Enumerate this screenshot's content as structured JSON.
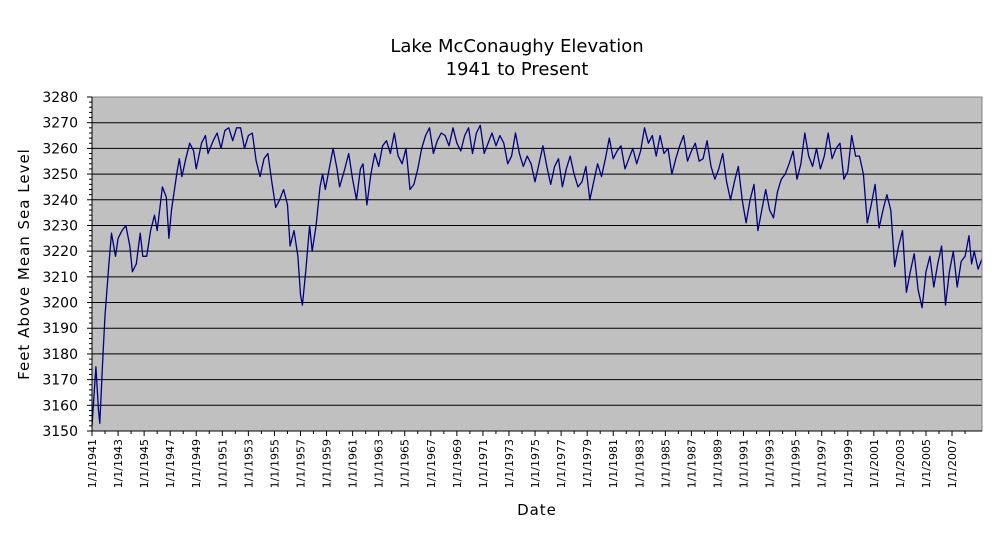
{
  "chart_data": {
    "type": "line",
    "title": "Lake McConaughy Elevation",
    "subtitle": "1941 to Present",
    "xlabel": "Date",
    "ylabel": "Feet Above Mean Sea Level",
    "ylim": [
      3150,
      3280
    ],
    "yticks": [
      3150,
      3160,
      3170,
      3180,
      3190,
      3200,
      3210,
      3220,
      3230,
      3240,
      3250,
      3260,
      3270,
      3280
    ],
    "xlim": [
      1941.0,
      2009.3
    ],
    "xticks": [
      "1/1/1941",
      "1/1/1943",
      "1/1/1945",
      "1/1/1947",
      "1/1/1949",
      "1/1/1951",
      "1/1/1953",
      "1/1/1955",
      "1/1/1957",
      "1/1/1959",
      "1/1/1961",
      "1/1/1963",
      "1/1/1965",
      "1/1/1967",
      "1/1/1969",
      "1/1/1971",
      "1/1/1973",
      "1/1/1975",
      "1/1/1977",
      "1/1/1979",
      "1/1/1981",
      "1/1/1983",
      "1/1/1985",
      "1/1/1987",
      "1/1/1989",
      "1/1/1991",
      "1/1/1993",
      "1/1/1995",
      "1/1/1997",
      "1/1/1999",
      "1/1/2001",
      "1/1/2003",
      "1/1/2005",
      "1/1/2007"
    ],
    "grid": true,
    "colors": {
      "line": "#000080",
      "plot_background": "#c0c0c0",
      "gridline": "#000000"
    },
    "series": [
      {
        "values": [
          [
            1941.0,
            3152
          ],
          [
            1941.3,
            3175
          ],
          [
            1941.5,
            3158
          ],
          [
            1941.6,
            3153
          ],
          [
            1941.8,
            3175
          ],
          [
            1942.0,
            3195
          ],
          [
            1942.3,
            3215
          ],
          [
            1942.5,
            3227
          ],
          [
            1942.8,
            3218
          ],
          [
            1943.0,
            3225
          ],
          [
            1943.3,
            3228
          ],
          [
            1943.6,
            3230
          ],
          [
            1943.9,
            3222
          ],
          [
            1944.1,
            3212
          ],
          [
            1944.4,
            3215
          ],
          [
            1944.7,
            3227
          ],
          [
            1944.9,
            3218
          ],
          [
            1945.2,
            3218
          ],
          [
            1945.5,
            3228
          ],
          [
            1945.8,
            3234
          ],
          [
            1946.0,
            3228
          ],
          [
            1946.4,
            3245
          ],
          [
            1946.7,
            3241
          ],
          [
            1946.9,
            3225
          ],
          [
            1947.1,
            3236
          ],
          [
            1947.5,
            3250
          ],
          [
            1947.7,
            3256
          ],
          [
            1947.9,
            3249
          ],
          [
            1948.2,
            3256
          ],
          [
            1948.5,
            3262
          ],
          [
            1948.8,
            3259
          ],
          [
            1949.0,
            3252
          ],
          [
            1949.4,
            3262
          ],
          [
            1949.7,
            3265
          ],
          [
            1949.9,
            3258
          ],
          [
            1950.3,
            3263
          ],
          [
            1950.6,
            3266
          ],
          [
            1950.9,
            3260
          ],
          [
            1951.2,
            3267
          ],
          [
            1951.5,
            3268
          ],
          [
            1951.8,
            3263
          ],
          [
            1952.1,
            3268
          ],
          [
            1952.4,
            3268
          ],
          [
            1952.7,
            3260
          ],
          [
            1953.0,
            3265
          ],
          [
            1953.3,
            3266
          ],
          [
            1953.6,
            3255
          ],
          [
            1953.9,
            3249
          ],
          [
            1954.2,
            3256
          ],
          [
            1954.5,
            3258
          ],
          [
            1954.8,
            3247
          ],
          [
            1955.1,
            3237
          ],
          [
            1955.4,
            3240
          ],
          [
            1955.7,
            3244
          ],
          [
            1956.0,
            3238
          ],
          [
            1956.2,
            3222
          ],
          [
            1956.5,
            3228
          ],
          [
            1956.8,
            3218
          ],
          [
            1957.0,
            3203
          ],
          [
            1957.15,
            3199
          ],
          [
            1957.4,
            3212
          ],
          [
            1957.7,
            3230
          ],
          [
            1957.9,
            3220
          ],
          [
            1958.2,
            3230
          ],
          [
            1958.5,
            3245
          ],
          [
            1958.7,
            3250
          ],
          [
            1958.9,
            3244
          ],
          [
            1959.2,
            3252
          ],
          [
            1959.5,
            3260
          ],
          [
            1959.8,
            3252
          ],
          [
            1960.0,
            3245
          ],
          [
            1960.4,
            3252
          ],
          [
            1960.7,
            3258
          ],
          [
            1961.0,
            3248
          ],
          [
            1961.3,
            3240
          ],
          [
            1961.6,
            3252
          ],
          [
            1961.8,
            3254
          ],
          [
            1962.1,
            3238
          ],
          [
            1962.4,
            3250
          ],
          [
            1962.7,
            3258
          ],
          [
            1963.0,
            3253
          ],
          [
            1963.3,
            3261
          ],
          [
            1963.6,
            3263
          ],
          [
            1963.9,
            3258
          ],
          [
            1964.2,
            3266
          ],
          [
            1964.5,
            3257
          ],
          [
            1964.8,
            3254
          ],
          [
            1965.1,
            3260
          ],
          [
            1965.4,
            3244
          ],
          [
            1965.7,
            3246
          ],
          [
            1966.0,
            3252
          ],
          [
            1966.3,
            3260
          ],
          [
            1966.6,
            3265
          ],
          [
            1966.9,
            3268
          ],
          [
            1967.2,
            3258
          ],
          [
            1967.5,
            3263
          ],
          [
            1967.8,
            3266
          ],
          [
            1968.1,
            3265
          ],
          [
            1968.4,
            3261
          ],
          [
            1968.7,
            3268
          ],
          [
            1969.0,
            3262
          ],
          [
            1969.3,
            3259
          ],
          [
            1969.6,
            3265
          ],
          [
            1969.9,
            3268
          ],
          [
            1970.2,
            3258
          ],
          [
            1970.5,
            3266
          ],
          [
            1970.8,
            3269
          ],
          [
            1971.1,
            3258
          ],
          [
            1971.4,
            3262
          ],
          [
            1971.7,
            3266
          ],
          [
            1972.0,
            3261
          ],
          [
            1972.3,
            3265
          ],
          [
            1972.6,
            3262
          ],
          [
            1972.9,
            3254
          ],
          [
            1973.2,
            3257
          ],
          [
            1973.5,
            3266
          ],
          [
            1973.8,
            3258
          ],
          [
            1974.1,
            3253
          ],
          [
            1974.4,
            3257
          ],
          [
            1974.7,
            3254
          ],
          [
            1975.0,
            3247
          ],
          [
            1975.3,
            3254
          ],
          [
            1975.6,
            3261
          ],
          [
            1975.9,
            3253
          ],
          [
            1976.2,
            3246
          ],
          [
            1976.5,
            3253
          ],
          [
            1976.8,
            3256
          ],
          [
            1977.1,
            3245
          ],
          [
            1977.4,
            3252
          ],
          [
            1977.7,
            3257
          ],
          [
            1978.0,
            3250
          ],
          [
            1978.3,
            3245
          ],
          [
            1978.6,
            3247
          ],
          [
            1978.9,
            3253
          ],
          [
            1979.2,
            3240
          ],
          [
            1979.5,
            3247
          ],
          [
            1979.8,
            3254
          ],
          [
            1980.1,
            3249
          ],
          [
            1980.4,
            3256
          ],
          [
            1980.7,
            3264
          ],
          [
            1981.0,
            3256
          ],
          [
            1981.3,
            3259
          ],
          [
            1981.6,
            3261
          ],
          [
            1981.9,
            3252
          ],
          [
            1982.2,
            3256
          ],
          [
            1982.5,
            3260
          ],
          [
            1982.8,
            3254
          ],
          [
            1983.1,
            3259
          ],
          [
            1983.4,
            3268
          ],
          [
            1983.7,
            3262
          ],
          [
            1984.0,
            3265
          ],
          [
            1984.3,
            3257
          ],
          [
            1984.6,
            3265
          ],
          [
            1984.9,
            3258
          ],
          [
            1985.2,
            3260
          ],
          [
            1985.5,
            3250
          ],
          [
            1985.8,
            3256
          ],
          [
            1986.1,
            3261
          ],
          [
            1986.4,
            3265
          ],
          [
            1986.7,
            3255
          ],
          [
            1987.0,
            3259
          ],
          [
            1987.3,
            3262
          ],
          [
            1987.6,
            3255
          ],
          [
            1987.9,
            3256
          ],
          [
            1988.2,
            3263
          ],
          [
            1988.5,
            3253
          ],
          [
            1988.8,
            3248
          ],
          [
            1989.1,
            3252
          ],
          [
            1989.4,
            3258
          ],
          [
            1989.7,
            3247
          ],
          [
            1990.0,
            3240
          ],
          [
            1990.3,
            3247
          ],
          [
            1990.6,
            3253
          ],
          [
            1990.9,
            3240
          ],
          [
            1991.2,
            3231
          ],
          [
            1991.5,
            3240
          ],
          [
            1991.8,
            3246
          ],
          [
            1992.1,
            3228
          ],
          [
            1992.4,
            3236
          ],
          [
            1992.7,
            3244
          ],
          [
            1993.0,
            3236
          ],
          [
            1993.3,
            3233
          ],
          [
            1993.6,
            3243
          ],
          [
            1993.9,
            3248
          ],
          [
            1994.2,
            3250
          ],
          [
            1994.5,
            3254
          ],
          [
            1994.8,
            3259
          ],
          [
            1995.1,
            3248
          ],
          [
            1995.4,
            3254
          ],
          [
            1995.7,
            3266
          ],
          [
            1996.0,
            3257
          ],
          [
            1996.3,
            3253
          ],
          [
            1996.6,
            3260
          ],
          [
            1996.9,
            3252
          ],
          [
            1997.2,
            3257
          ],
          [
            1997.5,
            3266
          ],
          [
            1997.8,
            3256
          ],
          [
            1998.1,
            3260
          ],
          [
            1998.4,
            3262
          ],
          [
            1998.7,
            3248
          ],
          [
            1999.0,
            3251
          ],
          [
            1999.3,
            3265
          ],
          [
            1999.6,
            3257
          ],
          [
            1999.9,
            3257
          ],
          [
            2000.2,
            3250
          ],
          [
            2000.5,
            3231
          ],
          [
            2000.8,
            3238
          ],
          [
            2001.1,
            3246
          ],
          [
            2001.4,
            3229
          ],
          [
            2001.7,
            3236
          ],
          [
            2002.0,
            3242
          ],
          [
            2002.3,
            3236
          ],
          [
            2002.6,
            3214
          ],
          [
            2002.9,
            3222
          ],
          [
            2003.2,
            3228
          ],
          [
            2003.5,
            3204
          ],
          [
            2003.8,
            3212
          ],
          [
            2004.1,
            3219
          ],
          [
            2004.4,
            3205
          ],
          [
            2004.7,
            3198
          ],
          [
            2005.0,
            3212
          ],
          [
            2005.3,
            3218
          ],
          [
            2005.6,
            3206
          ],
          [
            2005.9,
            3215
          ],
          [
            2006.2,
            3222
          ],
          [
            2006.5,
            3199
          ],
          [
            2006.8,
            3212
          ],
          [
            2007.1,
            3220
          ],
          [
            2007.4,
            3206
          ],
          [
            2007.7,
            3216
          ],
          [
            2008.0,
            3218
          ],
          [
            2008.3,
            3226
          ],
          [
            2008.5,
            3215
          ],
          [
            2008.7,
            3220
          ],
          [
            2009.0,
            3213
          ],
          [
            2009.3,
            3217
          ]
        ]
      }
    ]
  }
}
